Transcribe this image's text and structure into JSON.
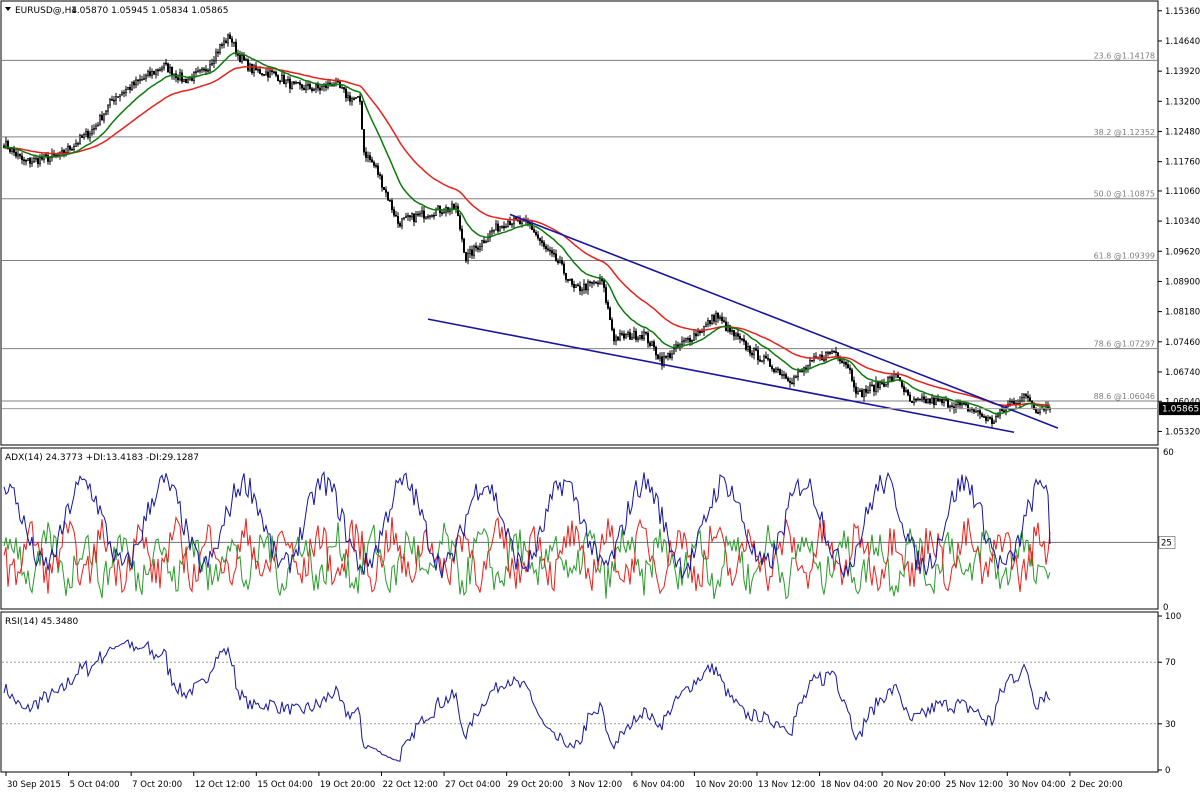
{
  "symbol_header": "EURUSD@,H4",
  "ohlc": [
    "1.05870",
    "1.05945",
    "1.05834",
    "1.05865"
  ],
  "current_price_label": "1.05865",
  "colors": {
    "bull_candle": "#ffffff",
    "bear_candle": "#000000",
    "ema_fast": "#0a7a0a",
    "ema_slow": "#e8201a",
    "trendline": "#1515a0",
    "adx": "#1515a0",
    "plus_di": "#2b9a2b",
    "minus_di": "#e8201a",
    "rsi": "#1515a0",
    "fib_line": "#808080"
  },
  "x_axis_labels": [
    "30 Sep 2015",
    "5 Oct 04:00",
    "7 Oct 20:00",
    "12 Oct 12:00",
    "15 Oct 04:00",
    "19 Oct 20:00",
    "22 Oct 12:00",
    "27 Oct 04:00",
    "29 Oct 20:00",
    "3 Nov 12:00",
    "6 Nov 04:00",
    "10 Nov 20:00",
    "13 Nov 12:00",
    "18 Nov 04:00",
    "20 Nov 20:00",
    "25 Nov 12:00",
    "30 Nov 04:00",
    "2 Dec 20:00"
  ],
  "price_axis_labels": [
    "1.15360",
    "1.14640",
    "1.13920",
    "1.13200",
    "1.12480",
    "1.11760",
    "1.11060",
    "1.10340",
    "1.09620",
    "1.08900",
    "1.08180",
    "1.07460",
    "1.06740",
    "1.06040",
    "1.05320"
  ],
  "fib_levels": [
    {
      "label": "23.6 @1.14178",
      "price": 1.14178
    },
    {
      "label": "38.2 @1.12352",
      "price": 1.12352
    },
    {
      "label": "50.0 @1.10875",
      "price": 1.10875
    },
    {
      "label": "61.8 @1.09399",
      "price": 1.09399
    },
    {
      "label": "78.6 @1.07297",
      "price": 1.07297
    },
    {
      "label": "88.6 @1.06046",
      "price": 1.06046
    }
  ],
  "adx_panel": {
    "label": "ADX(14) 24.3773 +DI:13.4183 -DI:29.1287",
    "axis_labels": [
      "60",
      "25",
      "0"
    ],
    "level_label": "25"
  },
  "rsi_panel": {
    "label": "RSI(14) 45.3480",
    "axis_labels": [
      "100",
      "70",
      "30",
      "0"
    ]
  },
  "chart_data": {
    "type": "candlestick",
    "symbol": "EURUSD",
    "timeframe": "H4",
    "price_range": [
      1.0502,
      1.1557
    ],
    "anchors": [
      [
        0,
        1.122
      ],
      [
        10,
        1.1175
      ],
      [
        28,
        1.119
      ],
      [
        45,
        1.1255
      ],
      [
        55,
        1.133
      ],
      [
        70,
        1.1375
      ],
      [
        80,
        1.1405
      ],
      [
        90,
        1.137
      ],
      [
        100,
        1.139
      ],
      [
        108,
        1.145
      ],
      [
        113,
        1.1475
      ],
      [
        117,
        1.143
      ],
      [
        124,
        1.1395
      ],
      [
        135,
        1.1385
      ],
      [
        145,
        1.1355
      ],
      [
        158,
        1.135
      ],
      [
        165,
        1.1365
      ],
      [
        172,
        1.133
      ],
      [
        178,
        1.132
      ],
      [
        180,
        1.12
      ],
      [
        186,
        1.116
      ],
      [
        192,
        1.109
      ],
      [
        197,
        1.103
      ],
      [
        206,
        1.1045
      ],
      [
        216,
        1.106
      ],
      [
        226,
        1.1065
      ],
      [
        231,
        1.0945
      ],
      [
        244,
        1.101
      ],
      [
        252,
        1.1035
      ],
      [
        263,
        1.1025
      ],
      [
        270,
        1.097
      ],
      [
        278,
        1.093
      ],
      [
        285,
        1.087
      ],
      [
        292,
        1.088
      ],
      [
        299,
        1.089
      ],
      [
        305,
        1.0755
      ],
      [
        320,
        1.0765
      ],
      [
        329,
        1.07
      ],
      [
        340,
        1.0745
      ],
      [
        350,
        1.078
      ],
      [
        356,
        1.081
      ],
      [
        362,
        1.0775
      ],
      [
        372,
        1.073
      ],
      [
        382,
        1.0695
      ],
      [
        394,
        1.0655
      ],
      [
        405,
        1.07
      ],
      [
        415,
        1.0725
      ],
      [
        422,
        1.069
      ],
      [
        427,
        1.062
      ],
      [
        440,
        1.065
      ],
      [
        447,
        1.0665
      ],
      [
        453,
        1.06
      ],
      [
        461,
        1.0605
      ],
      [
        472,
        1.06
      ],
      [
        484,
        1.0585
      ],
      [
        494,
        1.0555
      ],
      [
        503,
        1.06
      ],
      [
        512,
        1.0615
      ],
      [
        516,
        1.0585
      ],
      [
        520,
        1.0592
      ],
      [
        523,
        1.0587
      ]
    ],
    "ema_fast_period": 20,
    "ema_slow_period": 50,
    "trendlines": [
      {
        "name": "upper",
        "from": [
          253,
          1.105
        ],
        "to": [
          527,
          1.054
        ]
      },
      {
        "name": "lower",
        "from": [
          212,
          1.08
        ],
        "to": [
          505,
          1.053
        ]
      }
    ],
    "adx": {
      "adx": 24.3773,
      "plus_di": 13.4183,
      "minus_di": 29.1287,
      "level": 25,
      "range": [
        0,
        60
      ]
    },
    "rsi": {
      "value": 45.348,
      "levels": [
        30,
        70
      ],
      "range": [
        0,
        100
      ]
    }
  }
}
